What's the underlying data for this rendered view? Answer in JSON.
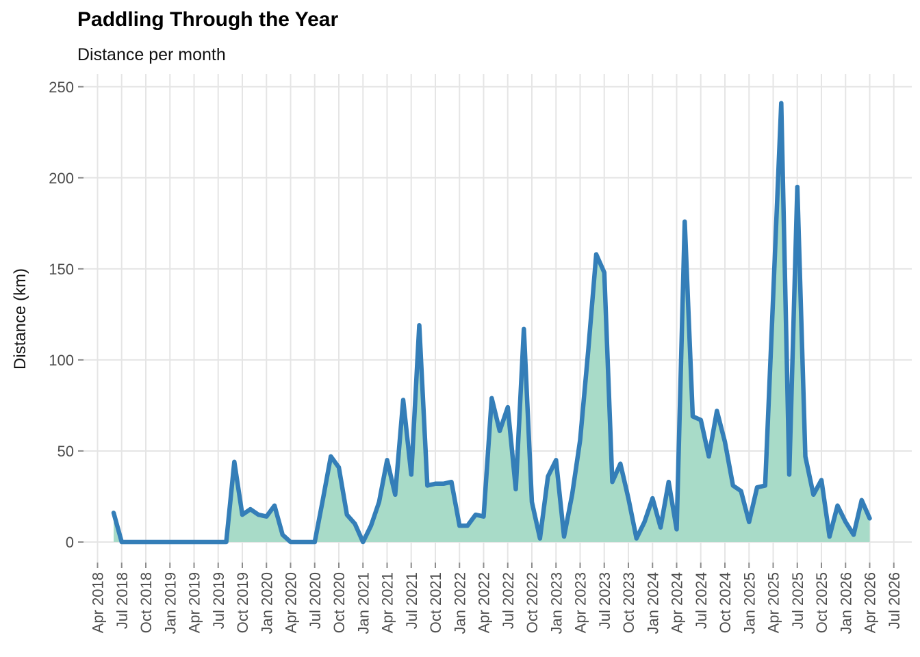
{
  "header": {
    "title": "Paddling Through the Year",
    "subtitle": "Distance per month"
  },
  "chart_data": {
    "type": "area",
    "title": "Paddling Through the Year",
    "subtitle": "Distance per month",
    "xlabel": "",
    "ylabel": "Distance (km)",
    "ylim": [
      0,
      250
    ],
    "grid": "major-only",
    "legend": "none",
    "y_ticks": [
      0,
      50,
      100,
      150,
      200,
      250
    ],
    "x_tick_labels": [
      "Apr 2018",
      "Jul 2018",
      "Oct 2018",
      "Jan 2019",
      "Apr 2019",
      "Jul 2019",
      "Oct 2019",
      "Jan 2020",
      "Apr 2020",
      "Jul 2020",
      "Oct 2020",
      "Jan 2021",
      "Apr 2021",
      "Jul 2021",
      "Oct 2021",
      "Jan 2022",
      "Apr 2022",
      "Jul 2022",
      "Oct 2022",
      "Jan 2023",
      "Apr 2023",
      "Jul 2023",
      "Oct 2023",
      "Jan 2024",
      "Apr 2024",
      "Jul 2024",
      "Oct 2024",
      "Jan 2025",
      "Apr 2025",
      "Jul 2025",
      "Oct 2025",
      "Jan 2026",
      "Apr 2026",
      "Jul 2026"
    ],
    "axis_origin_month": "2018-04",
    "series": [
      {
        "name": "Distance per month",
        "unit": "km",
        "start_month": "2018-06",
        "frequency": "monthly",
        "values": [
          16,
          0,
          0,
          0,
          0,
          0,
          0,
          0,
          0,
          0,
          0,
          0,
          0,
          0,
          0,
          44,
          15,
          18,
          15,
          14,
          20,
          4,
          0,
          0,
          0,
          0,
          23,
          47,
          41,
          15,
          10,
          0,
          9,
          22,
          45,
          26,
          78,
          37,
          119,
          31,
          32,
          32,
          33,
          9,
          9,
          15,
          14,
          79,
          61,
          74,
          29,
          117,
          22,
          2,
          36,
          45,
          3,
          26,
          56,
          105,
          158,
          148,
          33,
          43,
          24,
          2,
          11,
          24,
          8,
          33,
          7,
          176,
          69,
          67,
          47,
          72,
          55,
          31,
          28,
          11,
          30,
          31,
          135,
          241,
          37,
          195,
          47,
          26,
          34,
          3,
          20,
          11,
          4,
          23,
          13
        ]
      }
    ],
    "colors": {
      "line": "#347eb8",
      "fill": "#a8dbc8",
      "grid": "#e5e5e5",
      "tick_mark": "#8c8c8c",
      "axis_text": "#4d4d4d",
      "background": "#ffffff"
    }
  }
}
